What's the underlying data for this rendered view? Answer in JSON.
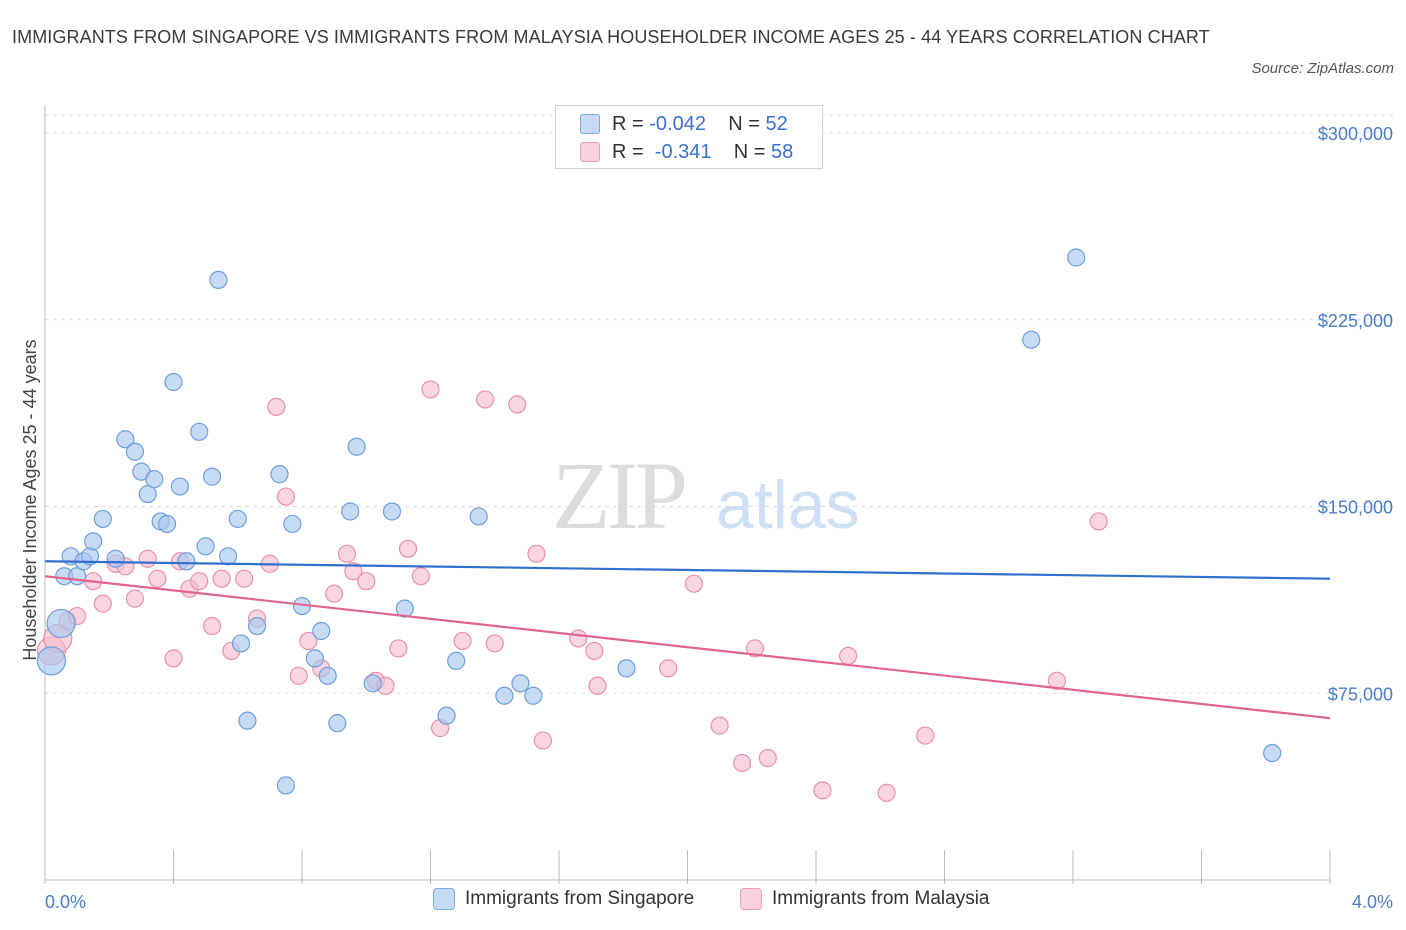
{
  "title": "IMMIGRANTS FROM SINGAPORE VS IMMIGRANTS FROM MALAYSIA HOUSEHOLDER INCOME AGES 25 - 44 YEARS CORRELATION CHART",
  "source": "Source: ZipAtlas.com",
  "watermark": {
    "zip": "ZIP",
    "atlas": "atlas"
  },
  "legend": {
    "rows": [
      {
        "r_label": "R = ",
        "r_value": "-0.042",
        "n_label": "N = ",
        "n_value": "52",
        "color": "#a9c8f0"
      },
      {
        "r_label": "R = ",
        "r_value": " -0.341",
        "n_label": "N = ",
        "n_value": "58",
        "color": "#f6bfd0"
      }
    ]
  },
  "bottom_legend": {
    "singapore": "Immigrants from Singapore",
    "malaysia": "Immigrants from Malaysia"
  },
  "colors": {
    "singapore_fill": "#a9c8f0",
    "singapore_stroke": "#6f9fd8",
    "singapore_line": "#2f6fce",
    "malaysia_fill": "#f6bfd0",
    "malaysia_stroke": "#e890ad",
    "malaysia_line": "#e0648f",
    "tick_text": "#4a7cc9",
    "grid": "#d9d9d9"
  },
  "chart_data": {
    "type": "scatter",
    "title": "IMMIGRANTS FROM SINGAPORE VS IMMIGRANTS FROM MALAYSIA HOUSEHOLDER INCOME AGES 25 - 44 YEARS CORRELATION CHART",
    "xlabel": "",
    "ylabel": "Householder Income Ages 25 - 44 years",
    "xlim": [
      0,
      4.0
    ],
    "ylim": [
      0,
      300000
    ],
    "x_tick_labels": [
      "0.0%",
      "4.0%"
    ],
    "y_ticks": [
      75000,
      150000,
      225000,
      300000
    ],
    "y_tick_labels": [
      "$75,000",
      "$150,000",
      "$225,000",
      "$300,000"
    ],
    "grid": "horizontal dashed",
    "legend_position": "top-center",
    "series": [
      {
        "name": "Immigrants from Singapore",
        "trend": {
          "x": [
            0.0,
            4.0
          ],
          "y": [
            128000,
            121000
          ]
        },
        "points": [
          [
            0.02,
            88000
          ],
          [
            0.05,
            103000
          ],
          [
            0.06,
            122000
          ],
          [
            0.08,
            130000
          ],
          [
            0.1,
            122000
          ],
          [
            0.12,
            128000
          ],
          [
            0.14,
            130000
          ],
          [
            0.15,
            136000
          ],
          [
            0.18,
            145000
          ],
          [
            0.22,
            129000
          ],
          [
            0.25,
            177000
          ],
          [
            0.28,
            172000
          ],
          [
            0.3,
            164000
          ],
          [
            0.32,
            155000
          ],
          [
            0.34,
            161000
          ],
          [
            0.36,
            144000
          ],
          [
            0.38,
            143000
          ],
          [
            0.4,
            200000
          ],
          [
            0.42,
            158000
          ],
          [
            0.44,
            128000
          ],
          [
            0.48,
            180000
          ],
          [
            0.5,
            134000
          ],
          [
            0.52,
            162000
          ],
          [
            0.54,
            241000
          ],
          [
            0.57,
            130000
          ],
          [
            0.6,
            145000
          ],
          [
            0.61,
            95000
          ],
          [
            0.63,
            64000
          ],
          [
            0.66,
            102000
          ],
          [
            0.73,
            163000
          ],
          [
            0.75,
            38000
          ],
          [
            0.77,
            143000
          ],
          [
            0.8,
            110000
          ],
          [
            0.84,
            89000
          ],
          [
            0.86,
            100000
          ],
          [
            0.88,
            82000
          ],
          [
            0.91,
            63000
          ],
          [
            0.95,
            148000
          ],
          [
            0.97,
            174000
          ],
          [
            1.02,
            79000
          ],
          [
            1.08,
            148000
          ],
          [
            1.12,
            109000
          ],
          [
            1.25,
            66000
          ],
          [
            1.28,
            88000
          ],
          [
            1.35,
            146000
          ],
          [
            1.43,
            74000
          ],
          [
            1.48,
            79000
          ],
          [
            1.52,
            74000
          ],
          [
            1.81,
            85000
          ],
          [
            3.07,
            217000
          ],
          [
            3.21,
            250000
          ],
          [
            3.82,
            51000
          ]
        ]
      },
      {
        "name": "Immigrants from Malaysia",
        "trend": {
          "x": [
            0.0,
            4.0
          ],
          "y": [
            122000,
            65000
          ]
        },
        "points": [
          [
            0.02,
            92000
          ],
          [
            0.04,
            97000
          ],
          [
            0.07,
            104000
          ],
          [
            0.1,
            106000
          ],
          [
            0.15,
            120000
          ],
          [
            0.18,
            111000
          ],
          [
            0.22,
            127000
          ],
          [
            0.25,
            126000
          ],
          [
            0.28,
            113000
          ],
          [
            0.32,
            129000
          ],
          [
            0.35,
            121000
          ],
          [
            0.4,
            89000
          ],
          [
            0.42,
            128000
          ],
          [
            0.45,
            117000
          ],
          [
            0.48,
            120000
          ],
          [
            0.52,
            102000
          ],
          [
            0.55,
            121000
          ],
          [
            0.58,
            92000
          ],
          [
            0.62,
            121000
          ],
          [
            0.66,
            105000
          ],
          [
            0.7,
            127000
          ],
          [
            0.72,
            190000
          ],
          [
            0.75,
            154000
          ],
          [
            0.79,
            82000
          ],
          [
            0.82,
            96000
          ],
          [
            0.86,
            85000
          ],
          [
            0.9,
            115000
          ],
          [
            0.94,
            131000
          ],
          [
            0.96,
            124000
          ],
          [
            1.0,
            120000
          ],
          [
            1.03,
            80000
          ],
          [
            1.06,
            78000
          ],
          [
            1.1,
            93000
          ],
          [
            1.13,
            133000
          ],
          [
            1.17,
            122000
          ],
          [
            1.2,
            197000
          ],
          [
            1.23,
            61000
          ],
          [
            1.3,
            96000
          ],
          [
            1.37,
            193000
          ],
          [
            1.4,
            95000
          ],
          [
            1.47,
            191000
          ],
          [
            1.53,
            131000
          ],
          [
            1.55,
            56000
          ],
          [
            1.66,
            97000
          ],
          [
            1.71,
            92000
          ],
          [
            1.72,
            78000
          ],
          [
            1.94,
            85000
          ],
          [
            2.02,
            119000
          ],
          [
            2.1,
            62000
          ],
          [
            2.17,
            47000
          ],
          [
            2.21,
            93000
          ],
          [
            2.25,
            49000
          ],
          [
            2.42,
            36000
          ],
          [
            2.5,
            90000
          ],
          [
            2.62,
            35000
          ],
          [
            2.74,
            58000
          ],
          [
            3.15,
            80000
          ],
          [
            3.28,
            144000
          ]
        ]
      }
    ]
  }
}
